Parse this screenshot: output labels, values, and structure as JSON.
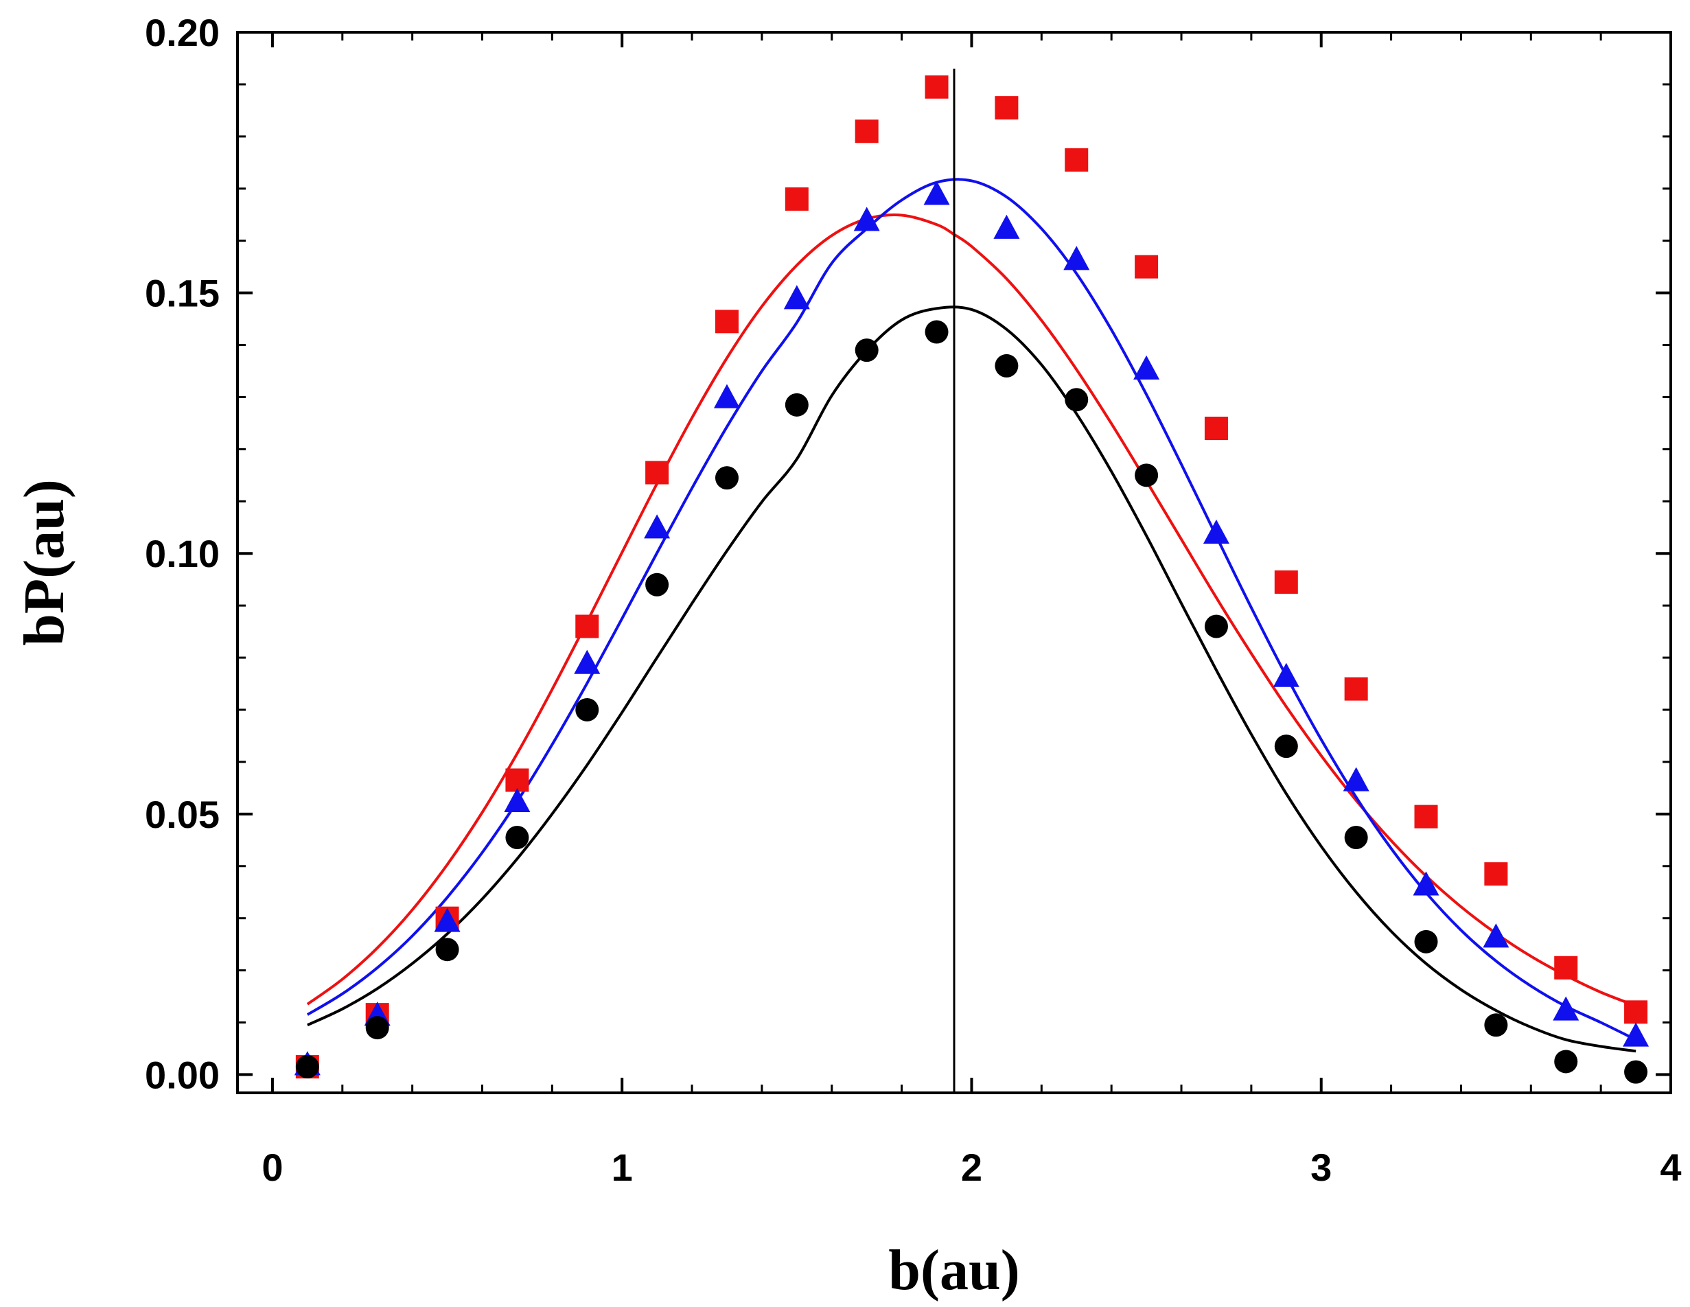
{
  "chart_data": {
    "type": "scatter",
    "title": "",
    "xlabel": "b(au)",
    "ylabel": "bP(au)",
    "xlim": [
      -0.1,
      4.0
    ],
    "ylim": [
      -0.0035,
      0.2
    ],
    "xticks": [
      0,
      1,
      2,
      3,
      4
    ],
    "xtick_labels": [
      "0",
      "1",
      "2",
      "3",
      "4"
    ],
    "yticks": [
      0.0,
      0.05,
      0.1,
      0.15,
      0.2
    ],
    "ytick_labels": [
      "0.00",
      "0.05",
      "0.10",
      "0.15",
      "0.20"
    ],
    "x_minor_step": 0.2,
    "y_minor_step": 0.01,
    "vertical_line_x": 1.95,
    "grid": false,
    "legend": "none",
    "series": [
      {
        "name": "squares (red)",
        "marker": "square",
        "color": "#ee1111",
        "x": [
          0.1,
          0.3,
          0.5,
          0.7,
          0.9,
          1.1,
          1.3,
          1.5,
          1.7,
          1.9,
          2.1,
          2.3,
          2.5,
          2.7,
          2.9,
          3.1,
          3.3,
          3.5,
          3.7,
          3.9
        ],
        "values": [
          0.0015,
          0.0115,
          0.03,
          0.0565,
          0.086,
          0.1155,
          0.1445,
          0.168,
          0.181,
          0.1895,
          0.1855,
          0.1755,
          0.155,
          0.124,
          0.0945,
          0.074,
          0.0495,
          0.0385,
          0.0205,
          0.012
        ],
        "fit": {
          "x": [
            0.1,
            0.2,
            0.3,
            0.4,
            0.5,
            0.6,
            0.7,
            0.8,
            0.9,
            1.0,
            1.1,
            1.2,
            1.3,
            1.4,
            1.5,
            1.6,
            1.7,
            1.8,
            1.9,
            1.95,
            2.0,
            2.1,
            2.2,
            2.3,
            2.4,
            2.5,
            2.6,
            2.7,
            2.8,
            2.9,
            3.0,
            3.1,
            3.2,
            3.3,
            3.4,
            3.5,
            3.6,
            3.7,
            3.8,
            3.9
          ],
          "y": [
            0.0135,
            0.0183,
            0.0243,
            0.0316,
            0.0403,
            0.0503,
            0.0616,
            0.0739,
            0.0869,
            0.1002,
            0.1134,
            0.126,
            0.1375,
            0.1474,
            0.1553,
            0.161,
            0.1642,
            0.1649,
            0.1631,
            0.1612,
            0.1589,
            0.1527,
            0.1447,
            0.1353,
            0.1249,
            0.1139,
            0.1027,
            0.0915,
            0.0808,
            0.0706,
            0.0612,
            0.0526,
            0.0449,
            0.0381,
            0.0322,
            0.0271,
            0.0227,
            0.019,
            0.0158,
            0.0132
          ]
        }
      },
      {
        "name": "triangles (blue)",
        "marker": "triangle",
        "color": "#1010ee",
        "x": [
          0.1,
          0.3,
          0.5,
          0.7,
          0.9,
          1.1,
          1.3,
          1.5,
          1.7,
          1.9,
          2.1,
          2.3,
          2.5,
          2.7,
          2.9,
          3.1,
          3.3,
          3.5,
          3.7,
          3.9
        ],
        "values": [
          0.002,
          0.0115,
          0.0295,
          0.0525,
          0.079,
          0.105,
          0.13,
          0.149,
          0.164,
          0.169,
          0.1625,
          0.1565,
          0.1355,
          0.104,
          0.0765,
          0.0565,
          0.0365,
          0.0265,
          0.0125,
          0.0075
        ],
        "fit": {
          "x": [
            0.1,
            0.2,
            0.3,
            0.4,
            0.5,
            0.6,
            0.7,
            0.8,
            0.9,
            1.0,
            1.1,
            1.2,
            1.3,
            1.4,
            1.5,
            1.6,
            1.7,
            1.8,
            1.9,
            2.0,
            2.1,
            2.2,
            2.3,
            2.4,
            2.5,
            2.6,
            2.7,
            2.8,
            2.9,
            3.0,
            3.1,
            3.2,
            3.3,
            3.4,
            3.5,
            3.6,
            3.7,
            3.8,
            3.9
          ],
          "y": [
            0.0115,
            0.0155,
            0.0205,
            0.0266,
            0.034,
            0.0426,
            0.0524,
            0.0633,
            0.0751,
            0.0875,
            0.1001,
            0.1125,
            0.1243,
            0.135,
            0.1443,
            0.1557,
            0.1623,
            0.1678,
            0.1712,
            0.1715,
            0.1684,
            0.1623,
            0.1537,
            0.1429,
            0.1305,
            0.1171,
            0.1033,
            0.0896,
            0.0765,
            0.0643,
            0.0532,
            0.0434,
            0.0349,
            0.0277,
            0.0218,
            0.017,
            0.0131,
            0.01,
            0.0067
          ]
        }
      },
      {
        "name": "circles (black)",
        "marker": "circle",
        "color": "#000000",
        "x": [
          0.1,
          0.3,
          0.5,
          0.7,
          0.9,
          1.1,
          1.3,
          1.5,
          1.7,
          1.9,
          2.1,
          2.3,
          2.5,
          2.7,
          2.9,
          3.1,
          3.3,
          3.5,
          3.7,
          3.9
        ],
        "values": [
          0.0015,
          0.009,
          0.024,
          0.0455,
          0.07,
          0.094,
          0.1145,
          0.1285,
          0.139,
          0.1425,
          0.136,
          0.1295,
          0.115,
          0.086,
          0.063,
          0.0455,
          0.0255,
          0.0095,
          0.0025,
          0.0005
        ],
        "fit": {
          "x": [
            0.1,
            0.2,
            0.3,
            0.4,
            0.5,
            0.6,
            0.7,
            0.8,
            0.9,
            1.0,
            1.1,
            1.2,
            1.3,
            1.4,
            1.5,
            1.6,
            1.7,
            1.8,
            1.9,
            2.0,
            2.1,
            2.2,
            2.3,
            2.4,
            2.5,
            2.6,
            2.7,
            2.8,
            2.9,
            3.0,
            3.1,
            3.2,
            3.3,
            3.4,
            3.5,
            3.6,
            3.7,
            3.8,
            3.9
          ],
          "y": [
            0.0095,
            0.0126,
            0.0165,
            0.0213,
            0.027,
            0.0337,
            0.0414,
            0.05,
            0.0594,
            0.0695,
            0.08,
            0.0904,
            0.1005,
            0.1099,
            0.1181,
            0.1303,
            0.1389,
            0.1448,
            0.147,
            0.1468,
            0.143,
            0.1362,
            0.1268,
            0.1157,
            0.1034,
            0.0904,
            0.0776,
            0.0653,
            0.0539,
            0.0438,
            0.035,
            0.0275,
            0.0213,
            0.0163,
            0.0123,
            0.0091,
            0.0067,
            0.0054,
            0.0045
          ]
        }
      }
    ]
  }
}
